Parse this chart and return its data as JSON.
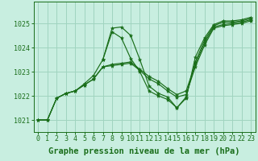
{
  "background_color": "#c8eee0",
  "grid_color": "#a0d4c0",
  "line_color": "#1a6e1a",
  "marker_color": "#1a6e1a",
  "xlabel": "Graphe pression niveau de la mer (hPa)",
  "xlabel_fontsize": 7.5,
  "tick_label_fontsize": 6.0,
  "ytick_labels": [
    "1021",
    "1022",
    "1023",
    "1024",
    "1025"
  ],
  "ytick_values": [
    1021,
    1022,
    1023,
    1024,
    1025
  ],
  "ylim": [
    1020.5,
    1025.9
  ],
  "xlim": [
    -0.5,
    23.5
  ],
  "series": [
    {
      "x": [
        0,
        1,
        2,
        3,
        4,
        5,
        6,
        7,
        8,
        9,
        10,
        11,
        12,
        13,
        14,
        15,
        16,
        17,
        18,
        19,
        20,
        21,
        22,
        23
      ],
      "y": [
        1021.0,
        1021.0,
        1021.9,
        1022.1,
        1022.2,
        1022.5,
        1022.85,
        1023.5,
        1024.8,
        1024.85,
        1024.5,
        1023.5,
        1022.4,
        1022.1,
        1021.95,
        1021.5,
        1021.95,
        1023.4,
        1024.3,
        1024.9,
        1025.05,
        1025.05,
        1025.1,
        1025.2
      ]
    },
    {
      "x": [
        0,
        1,
        2,
        3,
        4,
        5,
        6,
        7,
        8,
        9,
        10,
        11,
        12,
        13,
        14,
        15,
        16,
        17,
        18,
        19,
        20,
        21,
        22,
        23
      ],
      "y": [
        1021.0,
        1021.0,
        1021.9,
        1022.1,
        1022.2,
        1022.45,
        1022.7,
        1023.2,
        1023.3,
        1023.35,
        1023.4,
        1023.1,
        1022.8,
        1022.6,
        1022.3,
        1022.05,
        1022.2,
        1023.3,
        1024.2,
        1024.85,
        1024.95,
        1025.0,
        1025.05,
        1025.15
      ]
    },
    {
      "x": [
        0,
        1,
        2,
        3,
        4,
        5,
        6,
        7,
        8,
        9,
        10,
        11,
        12,
        13,
        14,
        15,
        16,
        17,
        18,
        19,
        20,
        21,
        22,
        23
      ],
      "y": [
        1021.0,
        1021.0,
        1021.9,
        1022.1,
        1022.2,
        1022.45,
        1022.7,
        1023.2,
        1023.25,
        1023.3,
        1023.35,
        1023.05,
        1022.7,
        1022.5,
        1022.2,
        1021.95,
        1022.05,
        1023.2,
        1024.1,
        1024.8,
        1024.9,
        1024.95,
        1025.0,
        1025.1
      ]
    },
    {
      "x": [
        7,
        8,
        9,
        10,
        11,
        12,
        13,
        14,
        15,
        16,
        17,
        18,
        19,
        20,
        21,
        22,
        23
      ],
      "y": [
        1023.5,
        1024.65,
        1024.4,
        1023.55,
        1023.0,
        1022.2,
        1022.0,
        1021.85,
        1021.5,
        1021.9,
        1023.6,
        1024.4,
        1024.95,
        1025.1,
        1025.1,
        1025.15,
        1025.25
      ]
    }
  ]
}
